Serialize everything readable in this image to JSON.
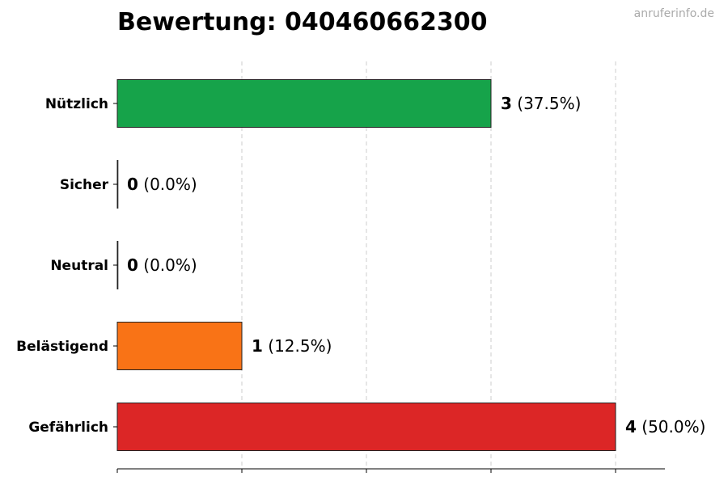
{
  "title": "Bewertung: 040460662300",
  "watermark": "anruferinfo.de",
  "chart_data": {
    "type": "bar",
    "orientation": "horizontal",
    "title": "Bewertung: 040460662300",
    "xlabel": "",
    "ylabel": "",
    "categories": [
      "Nützlich",
      "Sicher",
      "Neutral",
      "Belästigend",
      "Gefährlich"
    ],
    "values": [
      3,
      0,
      0,
      1,
      4
    ],
    "percent_labels": [
      "(37.5%)",
      "(0.0%)",
      "(0.0%)",
      "(12.5%)",
      "(50.0%)"
    ],
    "colors": [
      "#16a34a",
      "#16a34a",
      "#9ca3af",
      "#f97316",
      "#dc2626"
    ],
    "xlim": [
      0,
      4.4
    ],
    "x_grid": true,
    "x_tick_labels_shown": false
  }
}
